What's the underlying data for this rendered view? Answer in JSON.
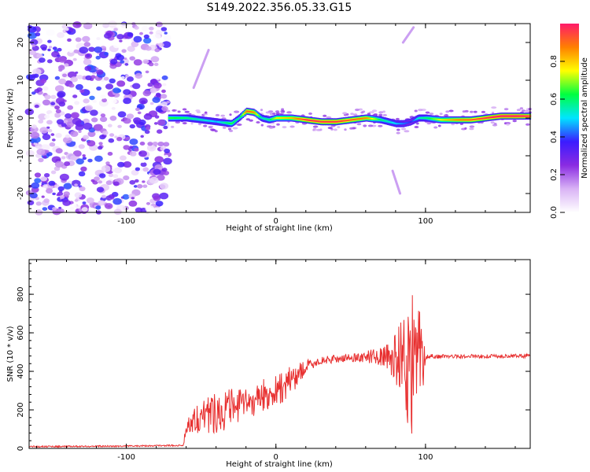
{
  "title": "S149.2022.356.05.33.G15",
  "colors": {
    "snr_line": "#e83030",
    "axis": "#000000"
  },
  "colormap_stops": [
    "#ffffff",
    "#d9b3f5",
    "#8a2be2",
    "#3b1cff",
    "#00e5ff",
    "#00ff40",
    "#ffff00",
    "#ff8000",
    "#ff1a6a"
  ],
  "chart_data": [
    {
      "type": "heatmap",
      "title": "S149.2022.356.05.33.G15",
      "xlabel": "Height of straight line (km)",
      "ylabel": "Frequency (Hz)",
      "xlim": [
        -165,
        170
      ],
      "ylim": [
        -25,
        25
      ],
      "xticks": [
        -100,
        0,
        100
      ],
      "yticks": [
        -20,
        -10,
        0,
        10,
        20
      ],
      "colorbar": {
        "label": "Normalized spectral amplitude",
        "range": [
          0,
          1
        ],
        "ticks": [
          0.0,
          0.2,
          0.4,
          0.6,
          0.8
        ]
      },
      "noise_region_x": [
        -165,
        -72
      ],
      "signal_track": {
        "x": [
          -72,
          -60,
          -50,
          -40,
          -30,
          -25,
          -20,
          -15,
          -10,
          -5,
          0,
          10,
          20,
          30,
          40,
          50,
          60,
          70,
          80,
          85,
          90,
          95,
          100,
          110,
          120,
          130,
          140,
          150,
          160,
          170
        ],
        "freq": [
          0,
          0,
          -0.5,
          -1,
          -1.5,
          0,
          1.8,
          1.5,
          0,
          -0.5,
          0,
          0,
          -0.5,
          -1,
          -1,
          -0.5,
          0,
          -0.5,
          -1.5,
          -1.5,
          -1,
          0,
          0,
          -0.5,
          -0.5,
          -0.5,
          0,
          0.5,
          0.5,
          0.5
        ],
        "amplitude": [
          0.6,
          0.55,
          0.5,
          0.45,
          0.6,
          0.5,
          0.85,
          0.8,
          0.5,
          0.55,
          0.7,
          0.75,
          0.9,
          0.9,
          0.9,
          0.85,
          0.8,
          0.55,
          0.45,
          0.4,
          0.35,
          0.5,
          0.55,
          0.7,
          0.8,
          0.85,
          0.9,
          0.95,
          0.95,
          0.9
        ]
      }
    },
    {
      "type": "line",
      "xlabel": "Height of straight line (km)",
      "ylabel": "SNR (10 * v/v)",
      "xlim": [
        -165,
        170
      ],
      "ylim": [
        0,
        980
      ],
      "xticks": [
        -100,
        0,
        100
      ],
      "yticks": [
        0,
        200,
        400,
        600,
        800
      ],
      "x": [
        -165,
        -140,
        -100,
        -80,
        -70,
        -62,
        -60,
        -55,
        -50,
        -45,
        -40,
        -35,
        -30,
        -25,
        -20,
        -15,
        -10,
        -5,
        0,
        5,
        10,
        15,
        20,
        25,
        30,
        40,
        50,
        60,
        70,
        75,
        80,
        85,
        88,
        90,
        92,
        94,
        96,
        98,
        100,
        102,
        110,
        120,
        130,
        140,
        150,
        160,
        170
      ],
      "y": [
        10,
        10,
        12,
        14,
        15,
        15,
        110,
        150,
        170,
        180,
        190,
        200,
        210,
        220,
        230,
        250,
        270,
        280,
        300,
        320,
        350,
        390,
        420,
        440,
        455,
        465,
        470,
        475,
        480,
        470,
        470,
        460,
        430,
        420,
        440,
        460,
        470,
        470,
        475,
        478,
        478,
        478,
        478,
        478,
        478,
        480,
        480
      ],
      "noise_amplitude": [
        4,
        4,
        4,
        4,
        4,
        4,
        40,
        70,
        90,
        100,
        110,
        110,
        100,
        90,
        80,
        90,
        90,
        80,
        80,
        90,
        80,
        60,
        40,
        25,
        20,
        20,
        20,
        30,
        50,
        70,
        140,
        260,
        340,
        380,
        380,
        320,
        260,
        200,
        14,
        14,
        10,
        10,
        10,
        10,
        10,
        10,
        10
      ]
    }
  ]
}
